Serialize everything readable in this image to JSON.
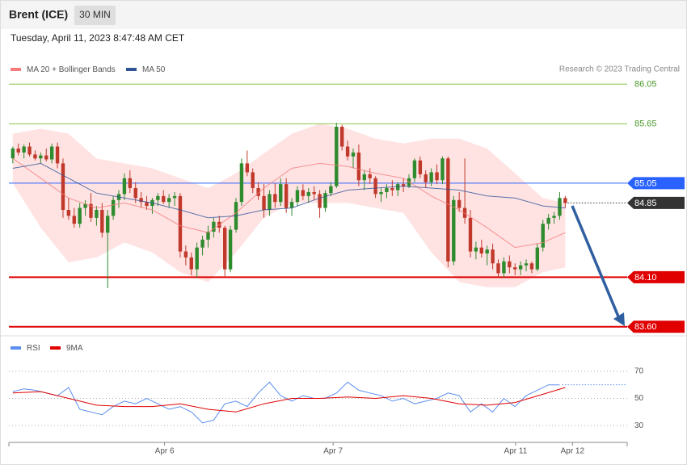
{
  "header": {
    "title": "Brent (ICE)",
    "interval": "30 MIN",
    "timestamp": "Tuesday, April 11, 2023 8:47:48 AM CET"
  },
  "chart_data": [
    {
      "type": "candlestick",
      "credit": "Research © 2023 Trading Central",
      "xlim": [
        -0.7,
        110.1
      ],
      "ylim": [
        83.5,
        86.15
      ],
      "up_color": "#2e8b2e",
      "down_color": "#c0392b",
      "ohlc": [
        [
          85.3,
          85.42,
          85.25,
          85.4
        ],
        [
          85.4,
          85.45,
          85.33,
          85.36
        ],
        [
          85.36,
          85.44,
          85.3,
          85.42
        ],
        [
          85.42,
          85.46,
          85.32,
          85.34
        ],
        [
          85.34,
          85.38,
          85.28,
          85.3
        ],
        [
          85.3,
          85.36,
          85.25,
          85.33
        ],
        [
          85.33,
          85.4,
          85.27,
          85.29
        ],
        [
          85.29,
          85.45,
          85.25,
          85.42
        ],
        [
          85.42,
          85.46,
          85.2,
          85.25
        ],
        [
          85.25,
          85.3,
          84.7,
          84.78
        ],
        [
          84.78,
          84.9,
          84.68,
          84.72
        ],
        [
          84.72,
          84.8,
          84.6,
          84.64
        ],
        [
          84.64,
          84.85,
          84.6,
          84.8
        ],
        [
          84.8,
          84.88,
          84.72,
          84.84
        ],
        [
          84.84,
          84.95,
          84.66,
          84.7
        ],
        [
          84.7,
          84.82,
          84.62,
          84.78
        ],
        [
          84.78,
          84.85,
          84.5,
          84.55
        ],
        [
          84.55,
          84.78,
          83.99,
          84.72
        ],
        [
          84.72,
          84.92,
          84.68,
          84.88
        ],
        [
          84.88,
          84.98,
          84.8,
          84.94
        ],
        [
          84.94,
          85.15,
          84.88,
          85.1
        ],
        [
          85.1,
          85.18,
          84.95,
          85.0
        ],
        [
          85.0,
          85.06,
          84.85,
          84.9
        ],
        [
          84.9,
          84.96,
          84.8,
          84.86
        ],
        [
          84.86,
          84.92,
          84.78,
          84.82
        ],
        [
          84.82,
          84.9,
          84.74,
          84.88
        ],
        [
          84.88,
          84.95,
          84.82,
          84.92
        ],
        [
          84.92,
          84.98,
          84.84,
          84.86
        ],
        [
          84.86,
          84.94,
          84.8,
          84.9
        ],
        [
          84.9,
          84.96,
          84.82,
          84.92
        ],
        [
          84.92,
          84.95,
          84.3,
          84.36
        ],
        [
          84.36,
          84.42,
          84.22,
          84.3
        ],
        [
          84.3,
          84.35,
          84.12,
          84.18
        ],
        [
          84.18,
          84.45,
          84.1,
          84.4
        ],
        [
          84.4,
          84.52,
          84.32,
          84.48
        ],
        [
          84.48,
          84.62,
          84.4,
          84.56
        ],
        [
          84.56,
          84.7,
          84.5,
          84.66
        ],
        [
          84.66,
          84.72,
          84.55,
          84.6
        ],
        [
          84.6,
          84.62,
          84.11,
          84.18
        ],
        [
          84.18,
          84.62,
          84.15,
          84.58
        ],
        [
          84.58,
          84.9,
          84.55,
          84.86
        ],
        [
          84.86,
          85.3,
          84.82,
          85.25
        ],
        [
          85.25,
          85.38,
          85.12,
          85.16
        ],
        [
          85.16,
          85.2,
          84.95,
          85.0
        ],
        [
          85.0,
          85.06,
          84.88,
          84.92
        ],
        [
          84.92,
          85.04,
          84.7,
          84.78
        ],
        [
          84.78,
          84.98,
          84.72,
          84.94
        ],
        [
          84.94,
          85.05,
          84.8,
          84.86
        ],
        [
          84.86,
          85.1,
          84.82,
          85.04
        ],
        [
          85.04,
          85.1,
          84.75,
          84.8
        ],
        [
          84.8,
          84.9,
          84.72,
          84.86
        ],
        [
          84.86,
          85.02,
          84.82,
          84.98
        ],
        [
          84.98,
          85.04,
          84.88,
          84.92
        ],
        [
          84.92,
          85.0,
          84.85,
          84.96
        ],
        [
          84.96,
          85.02,
          84.88,
          84.94
        ],
        [
          84.94,
          84.98,
          84.7,
          84.8
        ],
        [
          84.8,
          84.98,
          84.76,
          84.95
        ],
        [
          84.95,
          85.06,
          84.92,
          85.02
        ],
        [
          85.02,
          85.66,
          85.0,
          85.62
        ],
        [
          85.62,
          85.64,
          85.38,
          85.42
        ],
        [
          85.42,
          85.48,
          85.28,
          85.32
        ],
        [
          85.32,
          85.4,
          85.2,
          85.36
        ],
        [
          85.36,
          85.44,
          85.02,
          85.08
        ],
        [
          85.08,
          85.18,
          84.98,
          85.14
        ],
        [
          85.14,
          85.2,
          85.04,
          85.1
        ],
        [
          85.1,
          85.12,
          84.9,
          84.94
        ],
        [
          84.94,
          85.0,
          84.86,
          84.96
        ],
        [
          84.96,
          85.04,
          84.9,
          85.0
        ],
        [
          85.0,
          85.08,
          84.92,
          84.98
        ],
        [
          84.98,
          85.06,
          84.92,
          85.04
        ],
        [
          85.04,
          85.1,
          84.96,
          85.02
        ],
        [
          85.02,
          85.14,
          85.0,
          85.1
        ],
        [
          85.1,
          85.3,
          85.06,
          85.28
        ],
        [
          85.28,
          85.32,
          85.1,
          85.14
        ],
        [
          85.14,
          85.18,
          85.0,
          85.06
        ],
        [
          85.06,
          85.2,
          85.02,
          85.16
        ],
        [
          85.16,
          85.24,
          85.04,
          85.08
        ],
        [
          85.08,
          85.32,
          85.04,
          85.3
        ],
        [
          85.3,
          85.32,
          84.2,
          84.26
        ],
        [
          84.26,
          84.92,
          84.22,
          84.88
        ],
        [
          84.88,
          84.96,
          84.76,
          84.8
        ],
        [
          84.8,
          85.3,
          84.64,
          84.7
        ],
        [
          84.7,
          84.78,
          84.3,
          84.36
        ],
        [
          84.36,
          84.46,
          84.28,
          84.4
        ],
        [
          84.4,
          84.48,
          84.3,
          84.34
        ],
        [
          84.34,
          84.42,
          84.22,
          84.38
        ],
        [
          84.38,
          84.44,
          84.18,
          84.24
        ],
        [
          84.24,
          84.28,
          84.1,
          84.14
        ],
        [
          84.14,
          84.3,
          84.1,
          84.26
        ],
        [
          84.26,
          84.32,
          84.14,
          84.2
        ],
        [
          84.2,
          84.24,
          84.12,
          84.18
        ],
        [
          84.18,
          84.26,
          84.12,
          84.22
        ],
        [
          84.22,
          84.28,
          84.16,
          84.24
        ],
        [
          84.24,
          84.26,
          84.14,
          84.18
        ],
        [
          84.18,
          84.44,
          84.16,
          84.4
        ],
        [
          84.4,
          84.68,
          84.36,
          84.64
        ],
        [
          84.64,
          84.74,
          84.58,
          84.7
        ],
        [
          84.7,
          84.76,
          84.64,
          84.72
        ],
        [
          84.72,
          84.96,
          84.68,
          84.9
        ],
        [
          84.9,
          84.92,
          84.8,
          84.85
        ]
      ],
      "series": [
        {
          "name": "MA 20 + Bollinger Bands",
          "color": "#f47c7c",
          "band_color": "#ffe3e3",
          "x": [
            0,
            5,
            10,
            15,
            20,
            25,
            30,
            35,
            40,
            45,
            50,
            55,
            60,
            65,
            70,
            75,
            80,
            85,
            90,
            95,
            99
          ],
          "values": [
            85.3,
            85.1,
            84.9,
            84.8,
            84.85,
            84.78,
            84.62,
            84.55,
            84.75,
            85.0,
            85.2,
            85.25,
            85.22,
            85.15,
            85.1,
            84.92,
            84.78,
            84.6,
            84.4,
            84.45,
            84.55
          ],
          "upper": [
            85.55,
            85.6,
            85.55,
            85.3,
            85.25,
            85.2,
            85.1,
            85.0,
            85.15,
            85.35,
            85.55,
            85.65,
            85.6,
            85.5,
            85.45,
            85.5,
            85.5,
            85.4,
            85.15,
            84.9,
            84.85
          ],
          "lower": [
            85.05,
            84.6,
            84.25,
            84.3,
            84.45,
            84.35,
            84.15,
            84.05,
            84.35,
            84.7,
            84.85,
            84.85,
            84.85,
            84.8,
            84.75,
            84.35,
            84.05,
            84.0,
            84.0,
            84.15,
            84.2
          ]
        },
        {
          "name": "MA 50",
          "color": "#2f5597",
          "x": [
            0,
            5,
            10,
            15,
            20,
            25,
            30,
            35,
            40,
            45,
            50,
            55,
            60,
            65,
            70,
            75,
            80,
            85,
            90,
            95,
            99
          ],
          "values": [
            85.2,
            85.25,
            85.1,
            84.95,
            84.9,
            84.85,
            84.78,
            84.7,
            84.72,
            84.78,
            84.8,
            84.9,
            84.98,
            85.0,
            85.02,
            85.0,
            84.98,
            84.92,
            84.9,
            84.82,
            84.8
          ]
        }
      ],
      "levels": [
        {
          "value": 86.05,
          "color": "#8bc34a",
          "text_color": "#4c9a2a",
          "width": 1
        },
        {
          "value": 85.65,
          "color": "#8bc34a",
          "text_color": "#4c9a2a",
          "width": 1
        },
        {
          "value": 85.05,
          "color": "#2962ff",
          "tag": true,
          "width": 1
        },
        {
          "value": 84.85,
          "color": "#333333",
          "tag": true,
          "dotted": true,
          "width": 1
        },
        {
          "value": 84.1,
          "label": "84.10",
          "color": "#e00000",
          "tag": true,
          "width": 2
        },
        {
          "value": 83.6,
          "label": "83.60",
          "color": "#e00000",
          "tag": true,
          "width": 2
        }
      ]
    },
    {
      "type": "line",
      "xlim": [
        -0.7,
        110.1
      ],
      "ylim": [
        20,
        80
      ],
      "yticks": [
        30,
        50,
        70
      ],
      "xticks": [
        {
          "value": 27.2,
          "label": "Apr 6"
        },
        {
          "value": 57.4,
          "label": "Apr 7"
        },
        {
          "value": 90.1,
          "label": "Apr 11"
        },
        {
          "value": 100.3,
          "label": "Apr 12"
        }
      ],
      "series": [
        {
          "name": "RSI",
          "color": "#5b8def",
          "x": [
            0,
            2,
            4,
            6,
            8,
            10,
            12,
            14,
            16,
            18,
            20,
            22,
            24,
            26,
            28,
            30,
            32,
            34,
            36,
            38,
            40,
            42,
            44,
            46,
            48,
            50,
            52,
            54,
            56,
            58,
            60,
            62,
            64,
            66,
            68,
            70,
            72,
            74,
            76,
            78,
            80,
            82,
            84,
            86,
            88,
            90,
            92,
            94,
            96,
            98
          ],
          "values": [
            55,
            57,
            56,
            54,
            52,
            58,
            42,
            40,
            38,
            44,
            48,
            46,
            50,
            46,
            42,
            44,
            40,
            32,
            34,
            46,
            48,
            44,
            54,
            62,
            52,
            48,
            52,
            50,
            50,
            54,
            62,
            56,
            54,
            52,
            48,
            50,
            46,
            48,
            50,
            54,
            52,
            40,
            46,
            40,
            50,
            44,
            52,
            56,
            60,
            60
          ]
        },
        {
          "name": "9MA",
          "color": "#e00000",
          "x": [
            0,
            5,
            10,
            15,
            20,
            25,
            30,
            35,
            40,
            45,
            50,
            55,
            60,
            65,
            70,
            75,
            80,
            85,
            90,
            95,
            99
          ],
          "values": [
            54,
            55,
            50,
            45,
            44,
            44,
            46,
            42,
            40,
            46,
            50,
            50,
            51,
            50,
            52,
            50,
            46,
            45,
            47,
            53,
            58
          ]
        }
      ]
    }
  ]
}
